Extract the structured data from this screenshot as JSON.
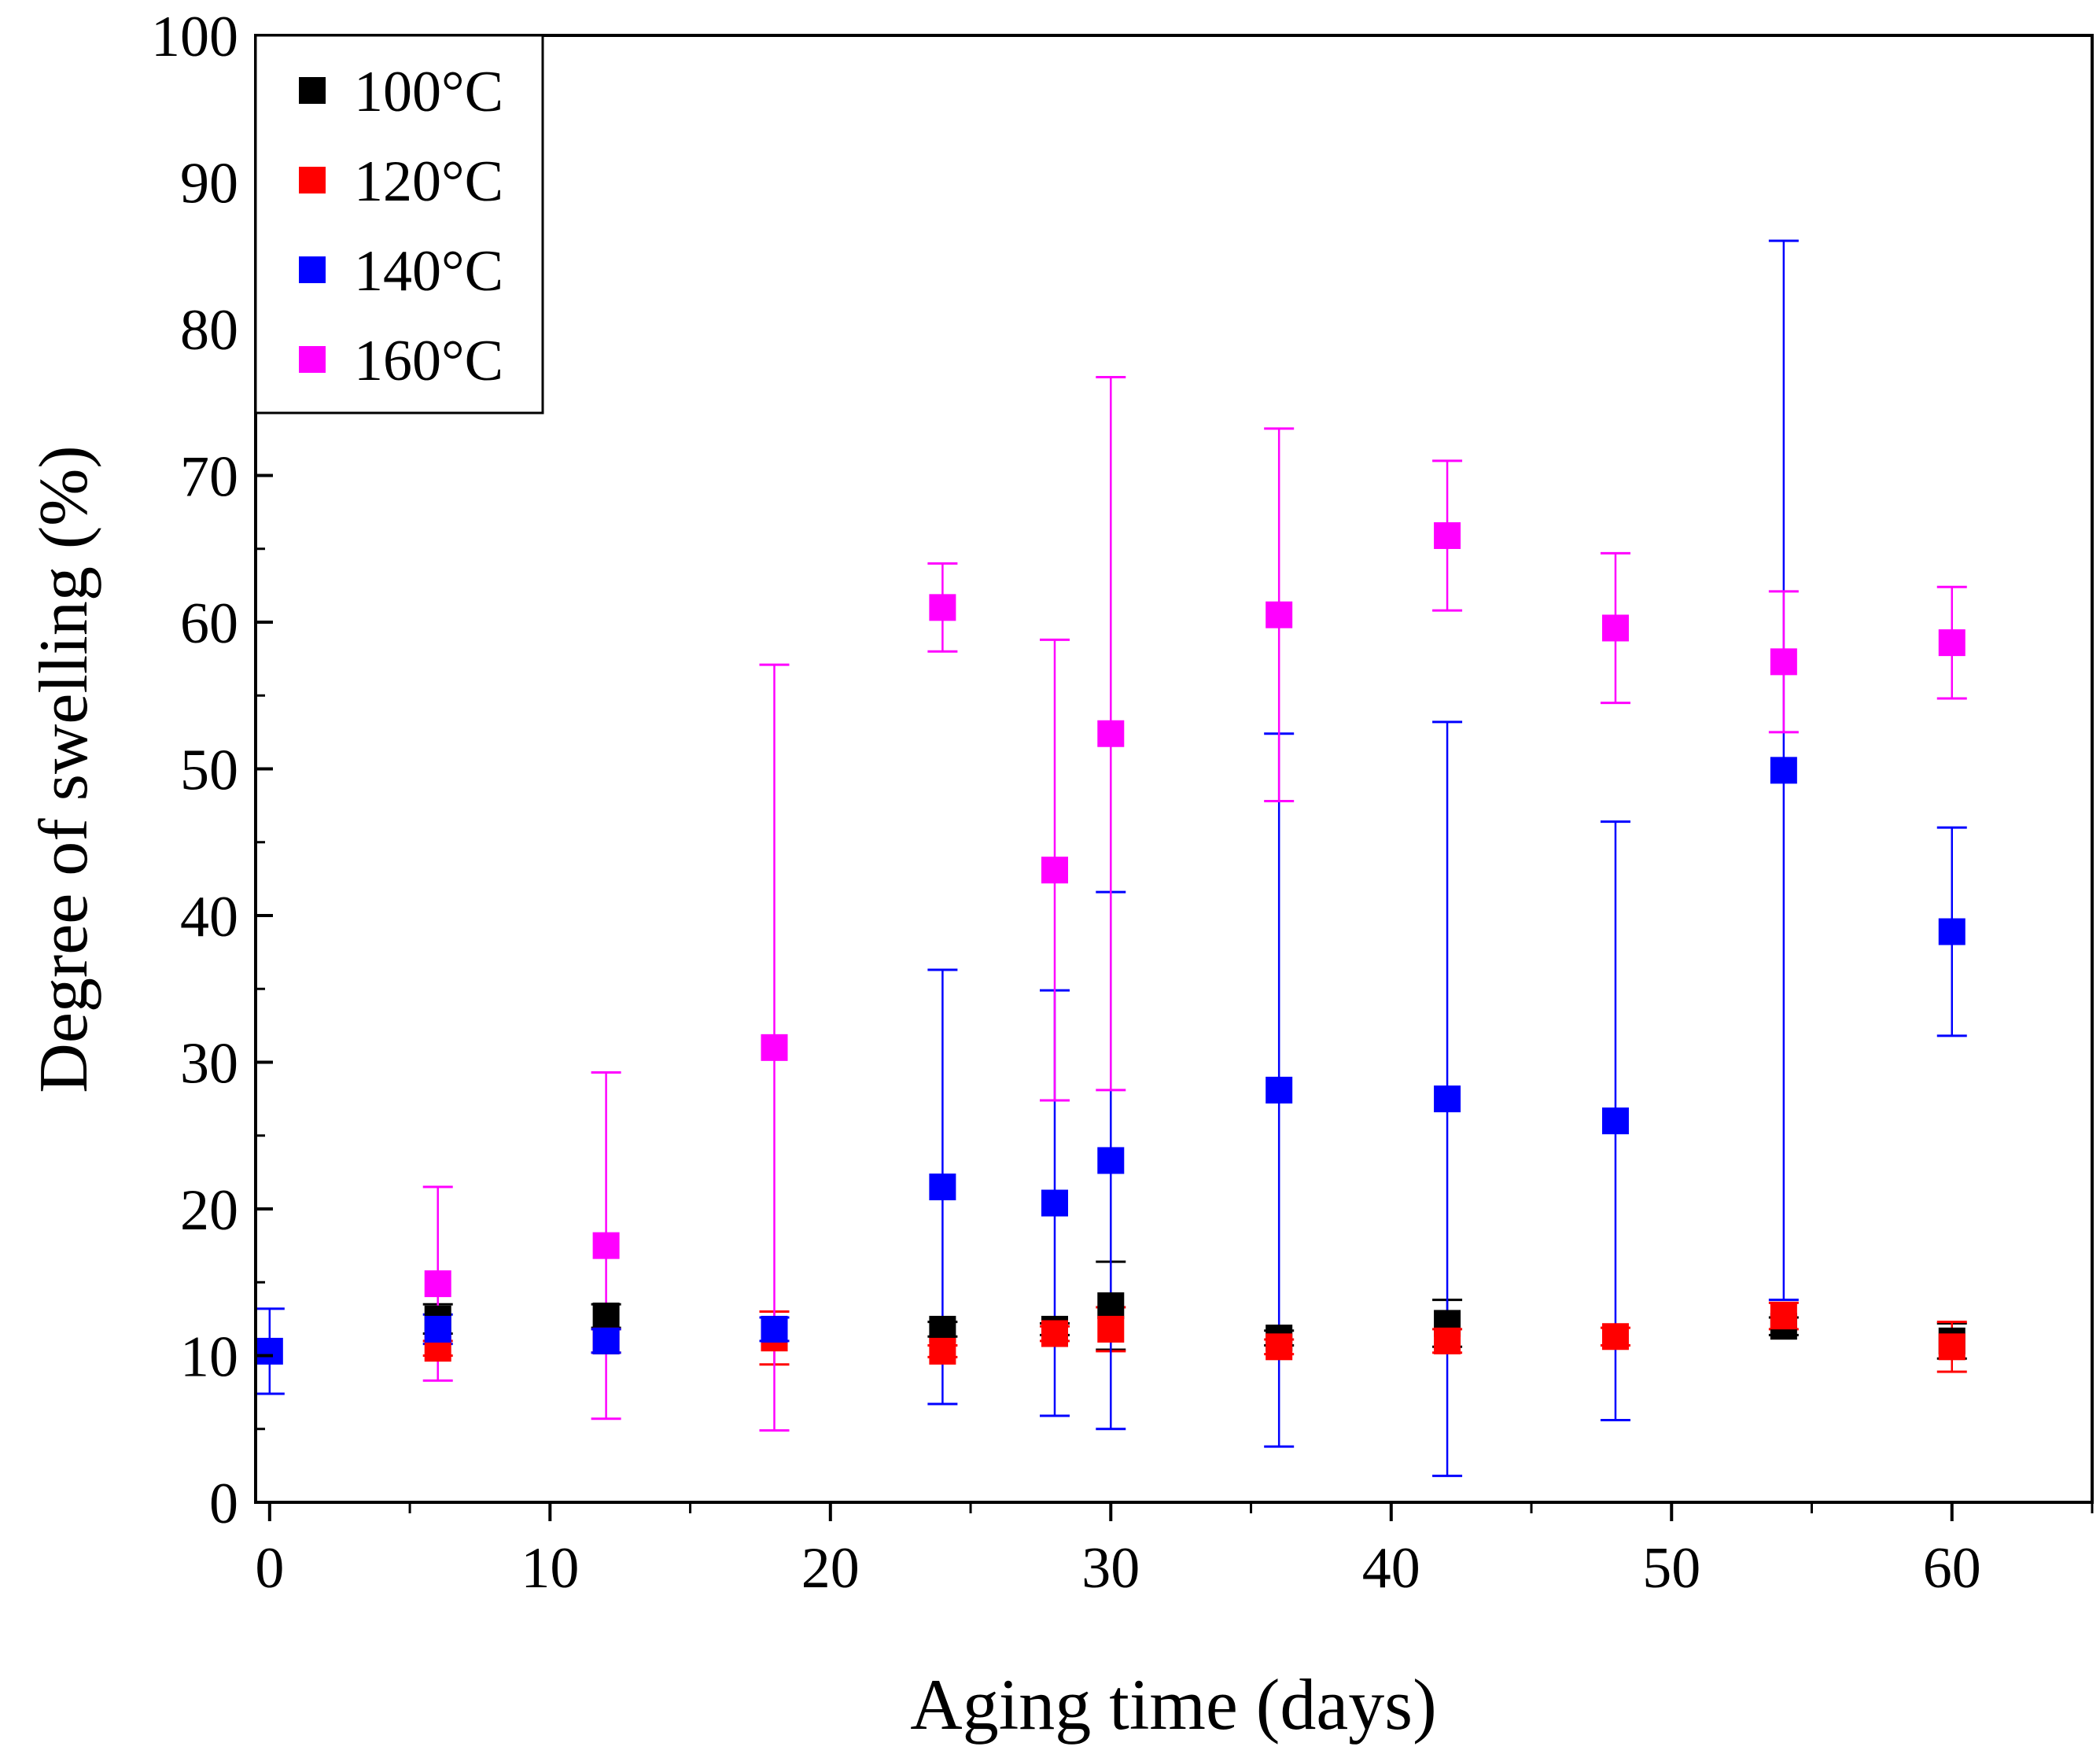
{
  "chart_data": {
    "type": "scatter",
    "title": "",
    "xlabel": "Aging time (days)",
    "ylabel": "Degree of swelling  (%)",
    "xlim": [
      -0.5,
      65
    ],
    "ylim": [
      0,
      100
    ],
    "x_ticks": [
      0,
      10,
      20,
      30,
      40,
      50,
      60
    ],
    "x_minor_ticks": [
      5,
      15,
      25,
      35,
      45,
      55,
      65
    ],
    "y_ticks": [
      0,
      10,
      20,
      30,
      40,
      50,
      60,
      70,
      80,
      90,
      100
    ],
    "y_minor_ticks": [
      5,
      15,
      25,
      35,
      45,
      55,
      65,
      75,
      85,
      95
    ],
    "grid": false,
    "legend_position": "top-left",
    "marker": "square",
    "series": [
      {
        "name": "100°C",
        "color": "#000000",
        "points": [
          {
            "x": 6,
            "y": 12.5,
            "err": 1.0
          },
          {
            "x": 12,
            "y": 12.7,
            "err": 0.8
          },
          {
            "x": 24,
            "y": 11.8,
            "err": 0.5
          },
          {
            "x": 28,
            "y": 11.8,
            "err": 0.4
          },
          {
            "x": 30,
            "y": 13.4,
            "err": 3.0
          },
          {
            "x": 36,
            "y": 11.2,
            "err": 0.5
          },
          {
            "x": 42,
            "y": 12.2,
            "err": 1.6
          },
          {
            "x": 54,
            "y": 12.0,
            "err": 0.6
          },
          {
            "x": 60,
            "y": 11.0,
            "err": 1.2
          }
        ]
      },
      {
        "name": "120°C",
        "color": "#ff0000",
        "points": [
          {
            "x": 6,
            "y": 10.5,
            "err": 0.5
          },
          {
            "x": 12,
            "y": 11.0,
            "err": 0.8
          },
          {
            "x": 18,
            "y": 11.2,
            "err": 1.8
          },
          {
            "x": 24,
            "y": 10.3,
            "err": 0.4
          },
          {
            "x": 28,
            "y": 11.5,
            "err": 0.5
          },
          {
            "x": 30,
            "y": 11.8,
            "err": 1.5
          },
          {
            "x": 36,
            "y": 10.6,
            "err": 0.5
          },
          {
            "x": 42,
            "y": 11.0,
            "err": 0.8
          },
          {
            "x": 48,
            "y": 11.3,
            "err": 0.6
          },
          {
            "x": 54,
            "y": 12.7,
            "err": 0.9
          },
          {
            "x": 60,
            "y": 10.6,
            "err": 1.7
          }
        ]
      },
      {
        "name": "140°C",
        "color": "#0000ff",
        "points": [
          {
            "x": 0,
            "y": 10.3,
            "err": 2.9
          },
          {
            "x": 6,
            "y": 11.8,
            "err": 1.0
          },
          {
            "x": 12,
            "y": 11.0,
            "err": 0.8
          },
          {
            "x": 18,
            "y": 11.8,
            "err": 0.8
          },
          {
            "x": 24,
            "y": 21.5,
            "err": 14.8
          },
          {
            "x": 28,
            "y": 20.4,
            "err": 14.5
          },
          {
            "x": 30,
            "y": 23.3,
            "err": 18.3
          },
          {
            "x": 36,
            "y": 28.1,
            "err": 24.3
          },
          {
            "x": 42,
            "y": 27.5,
            "err": 25.7
          },
          {
            "x": 48,
            "y": 26.0,
            "err": 20.4
          },
          {
            "x": 54,
            "y": 49.9,
            "err": 36.1
          },
          {
            "x": 60,
            "y": 38.9,
            "err": 7.1
          }
        ]
      },
      {
        "name": "160°C",
        "color": "#ff00ff",
        "points": [
          {
            "x": 6,
            "y": 14.9,
            "err": 6.6
          },
          {
            "x": 12,
            "y": 17.5,
            "err": 11.8
          },
          {
            "x": 18,
            "y": 31.0,
            "err": 26.1
          },
          {
            "x": 24,
            "y": 61.0,
            "err": 3.0
          },
          {
            "x": 28,
            "y": 43.1,
            "err": 15.7
          },
          {
            "x": 30,
            "y": 52.4,
            "err": 24.3
          },
          {
            "x": 36,
            "y": 60.5,
            "err": 12.7
          },
          {
            "x": 42,
            "y": 65.9,
            "err": 5.1
          },
          {
            "x": 48,
            "y": 59.6,
            "err": 5.1
          },
          {
            "x": 54,
            "y": 57.3,
            "err": 4.8
          },
          {
            "x": 60,
            "y": 58.6,
            "err": 3.8
          }
        ]
      }
    ]
  }
}
